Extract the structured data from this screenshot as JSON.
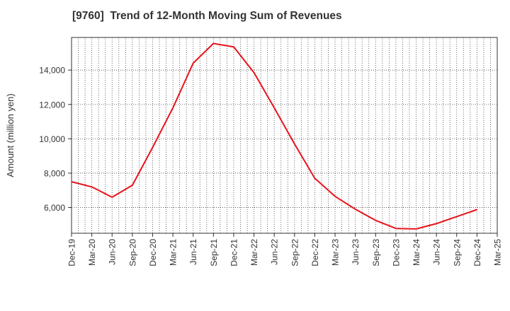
{
  "chart_data": {
    "type": "line",
    "title": "[9760]  Trend of 12-Month Moving Sum of Revenues",
    "xlabel": "",
    "ylabel": "Amount (million yen)",
    "x": [
      "Dec-19",
      "Mar-20",
      "Jun-20",
      "Sep-20",
      "Dec-20",
      "Mar-21",
      "Jun-21",
      "Sep-21",
      "Dec-21",
      "Mar-22",
      "Jun-22",
      "Sep-22",
      "Dec-22",
      "Mar-23",
      "Jun-23",
      "Sep-23",
      "Dec-23",
      "Mar-24",
      "Jun-24",
      "Sep-24",
      "Dec-24",
      "Mar-25"
    ],
    "x_ticks": [
      "Dec-19",
      "Mar-20",
      "Jun-20",
      "Sep-20",
      "Dec-20",
      "Mar-21",
      "Jun-21",
      "Sep-21",
      "Dec-21",
      "Mar-22",
      "Jun-22",
      "Sep-22",
      "Dec-22",
      "Mar-23",
      "Jun-23",
      "Sep-23",
      "Dec-23",
      "Mar-24",
      "Jun-24",
      "Sep-24",
      "Dec-24",
      "Mar-25"
    ],
    "ylim": [
      4500,
      15900
    ],
    "y_ticks": [
      6000,
      8000,
      10000,
      12000,
      14000
    ],
    "y_tick_labels": [
      "6,000",
      "8,000",
      "10,000",
      "12,000",
      "14,000"
    ],
    "grid": true,
    "series": [
      {
        "color": "#e8141c",
        "values": [
          7500,
          7200,
          6600,
          7300,
          9500,
          11800,
          14400,
          15550,
          15350,
          13850,
          11800,
          9700,
          7700,
          6650,
          5900,
          5250,
          4780,
          4750,
          5060,
          5470,
          5880,
          null
        ]
      }
    ]
  }
}
